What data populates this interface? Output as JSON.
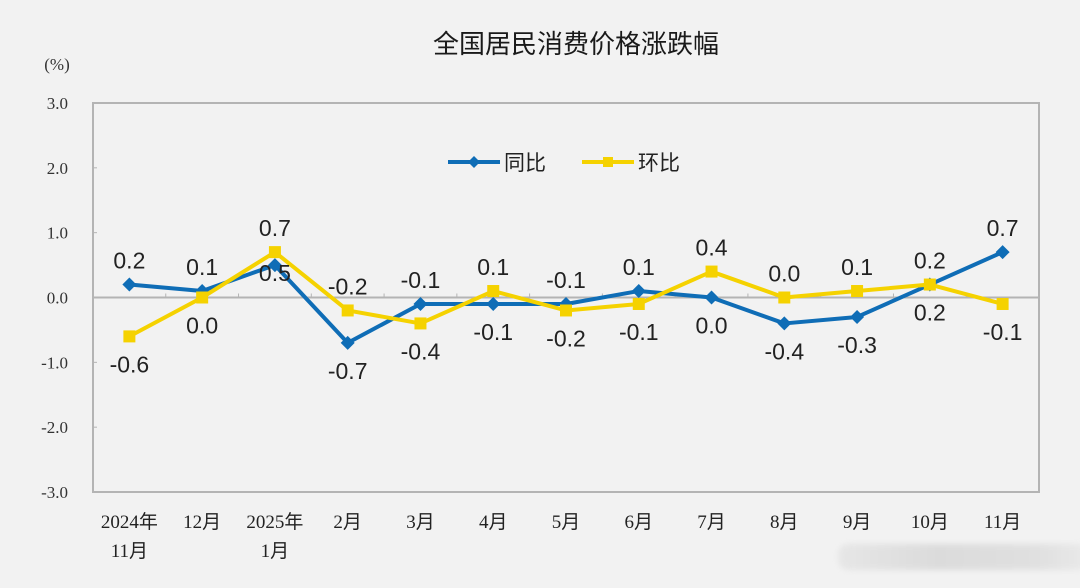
{
  "chart_data": {
    "type": "line",
    "title": "全国居民消费价格涨跌幅",
    "ylabel": "(%)",
    "xlabel": "",
    "ylim": [
      -3.0,
      3.0
    ],
    "yticks": [
      "3.0",
      "2.0",
      "1.0",
      "0.0",
      "-1.0",
      "-2.0",
      "-3.0"
    ],
    "grid": false,
    "legend_position": "top-center inside plot",
    "categories": [
      [
        "2024年",
        "11月"
      ],
      [
        "12月"
      ],
      [
        "2025年",
        "1月"
      ],
      [
        "2月"
      ],
      [
        "3月"
      ],
      [
        "4月"
      ],
      [
        "5月"
      ],
      [
        "6月"
      ],
      [
        "7月"
      ],
      [
        "8月"
      ],
      [
        "9月"
      ],
      [
        "10月"
      ],
      [
        "11月"
      ]
    ],
    "series": [
      {
        "name": "同比",
        "color": "#0f6db6",
        "marker": "diamond",
        "values": [
          0.2,
          0.1,
          0.5,
          -0.7,
          -0.1,
          -0.1,
          -0.1,
          0.1,
          0.0,
          -0.4,
          -0.3,
          0.2,
          0.7
        ],
        "labels": [
          "0.2",
          "0.1",
          "0.5",
          "-0.7",
          "-0.1",
          "-0.1",
          "-0.1",
          "0.1",
          "0.0",
          "-0.4",
          "-0.3",
          "0.2",
          "0.7"
        ],
        "label_pos": [
          "above",
          "above",
          "below-right",
          "below",
          "above",
          "below",
          "above",
          "above",
          "below",
          "below",
          "below",
          "above",
          "above"
        ]
      },
      {
        "name": "环比",
        "color": "#f5d200",
        "marker": "square",
        "values": [
          -0.6,
          0.0,
          0.7,
          -0.2,
          -0.4,
          0.1,
          -0.2,
          -0.1,
          0.4,
          0.0,
          0.1,
          0.2,
          -0.1
        ],
        "labels": [
          "-0.6",
          "0.0",
          "0.7",
          "-0.2",
          "-0.4",
          "0.1",
          "-0.2",
          "-0.1",
          "0.4",
          "0.0",
          "0.1",
          "0.2",
          "-0.1"
        ],
        "label_pos": [
          "below",
          "below",
          "above",
          "above",
          "below",
          "above",
          "below",
          "below",
          "above",
          "above",
          "above",
          "below",
          "below"
        ]
      }
    ]
  },
  "colors": {
    "background": "#f2f2f2",
    "axis": "#b4b4b4",
    "text": "#222222"
  }
}
